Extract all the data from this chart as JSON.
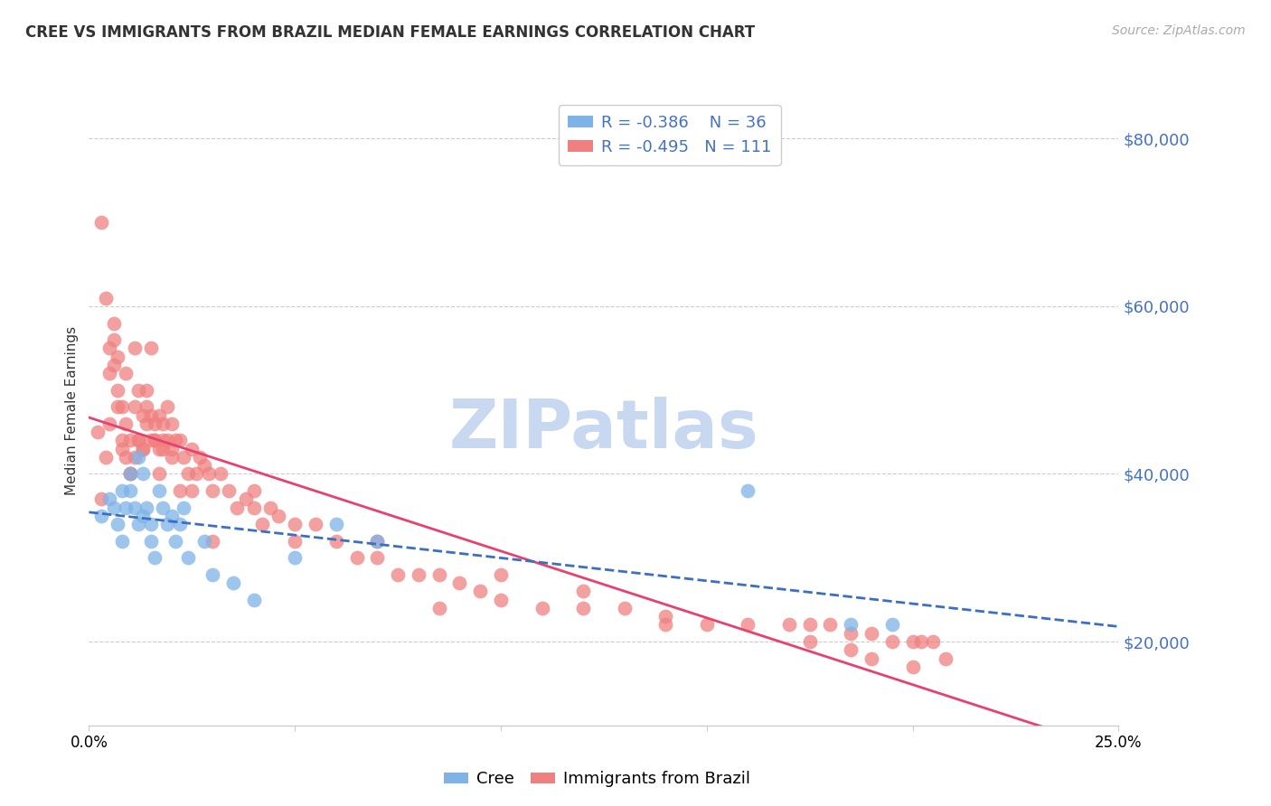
{
  "title": "CREE VS IMMIGRANTS FROM BRAZIL MEDIAN FEMALE EARNINGS CORRELATION CHART",
  "source": "Source: ZipAtlas.com",
  "ylabel": "Median Female Earnings",
  "yticks": [
    20000,
    40000,
    60000,
    80000
  ],
  "ytick_labels": [
    "$20,000",
    "$40,000",
    "$60,000",
    "$80,000"
  ],
  "xlim": [
    0.0,
    0.25
  ],
  "ylim": [
    10000,
    85000
  ],
  "cree_R": "-0.386",
  "cree_N": "36",
  "brazil_R": "-0.495",
  "brazil_N": "111",
  "cree_color": "#7eb3e8",
  "brazil_color": "#f08080",
  "cree_line_color": "#3a6fc4",
  "brazil_line_color": "#e8416e",
  "watermark": "ZIPatlas",
  "watermark_color": "#c8d8f0",
  "cree_x": [
    0.003,
    0.005,
    0.006,
    0.007,
    0.008,
    0.008,
    0.009,
    0.01,
    0.01,
    0.011,
    0.012,
    0.012,
    0.013,
    0.013,
    0.014,
    0.015,
    0.015,
    0.016,
    0.017,
    0.018,
    0.019,
    0.02,
    0.021,
    0.022,
    0.023,
    0.024,
    0.028,
    0.03,
    0.035,
    0.04,
    0.05,
    0.06,
    0.07,
    0.16,
    0.185,
    0.195
  ],
  "cree_y": [
    35000,
    37000,
    36000,
    34000,
    38000,
    32000,
    36000,
    40000,
    38000,
    36000,
    34000,
    42000,
    40000,
    35000,
    36000,
    32000,
    34000,
    30000,
    38000,
    36000,
    34000,
    35000,
    32000,
    34000,
    36000,
    30000,
    32000,
    28000,
    27000,
    25000,
    30000,
    34000,
    32000,
    38000,
    22000,
    22000
  ],
  "brazil_x": [
    0.002,
    0.003,
    0.004,
    0.005,
    0.005,
    0.006,
    0.006,
    0.007,
    0.007,
    0.008,
    0.008,
    0.009,
    0.009,
    0.01,
    0.01,
    0.011,
    0.011,
    0.012,
    0.012,
    0.013,
    0.013,
    0.014,
    0.014,
    0.015,
    0.015,
    0.016,
    0.016,
    0.017,
    0.017,
    0.018,
    0.018,
    0.019,
    0.019,
    0.02,
    0.02,
    0.021,
    0.022,
    0.023,
    0.024,
    0.025,
    0.026,
    0.027,
    0.028,
    0.029,
    0.03,
    0.032,
    0.034,
    0.036,
    0.038,
    0.04,
    0.042,
    0.044,
    0.046,
    0.05,
    0.055,
    0.06,
    0.065,
    0.07,
    0.075,
    0.08,
    0.085,
    0.09,
    0.095,
    0.1,
    0.11,
    0.12,
    0.13,
    0.14,
    0.15,
    0.16,
    0.17,
    0.175,
    0.18,
    0.185,
    0.19,
    0.195,
    0.2,
    0.202,
    0.205,
    0.208,
    0.003,
    0.004,
    0.005,
    0.006,
    0.007,
    0.008,
    0.009,
    0.01,
    0.011,
    0.012,
    0.013,
    0.014,
    0.015,
    0.016,
    0.017,
    0.018,
    0.02,
    0.022,
    0.025,
    0.03,
    0.04,
    0.05,
    0.07,
    0.085,
    0.1,
    0.12,
    0.14,
    0.175,
    0.185,
    0.19,
    0.2
  ],
  "brazil_y": [
    45000,
    37000,
    42000,
    52000,
    46000,
    56000,
    53000,
    54000,
    50000,
    48000,
    43000,
    52000,
    46000,
    44000,
    40000,
    48000,
    55000,
    50000,
    44000,
    47000,
    43000,
    50000,
    46000,
    55000,
    47000,
    46000,
    44000,
    43000,
    47000,
    46000,
    44000,
    48000,
    44000,
    43000,
    46000,
    44000,
    44000,
    42000,
    40000,
    43000,
    40000,
    42000,
    41000,
    40000,
    38000,
    40000,
    38000,
    36000,
    37000,
    36000,
    34000,
    36000,
    35000,
    32000,
    34000,
    32000,
    30000,
    30000,
    28000,
    28000,
    28000,
    27000,
    26000,
    25000,
    24000,
    24000,
    24000,
    23000,
    22000,
    22000,
    22000,
    22000,
    22000,
    21000,
    21000,
    20000,
    20000,
    20000,
    20000,
    18000,
    70000,
    61000,
    55000,
    58000,
    48000,
    44000,
    42000,
    40000,
    42000,
    44000,
    43000,
    48000,
    44000,
    44000,
    40000,
    43000,
    42000,
    38000,
    38000,
    32000,
    38000,
    34000,
    32000,
    24000,
    28000,
    26000,
    22000,
    20000,
    19000,
    18000,
    17000
  ]
}
